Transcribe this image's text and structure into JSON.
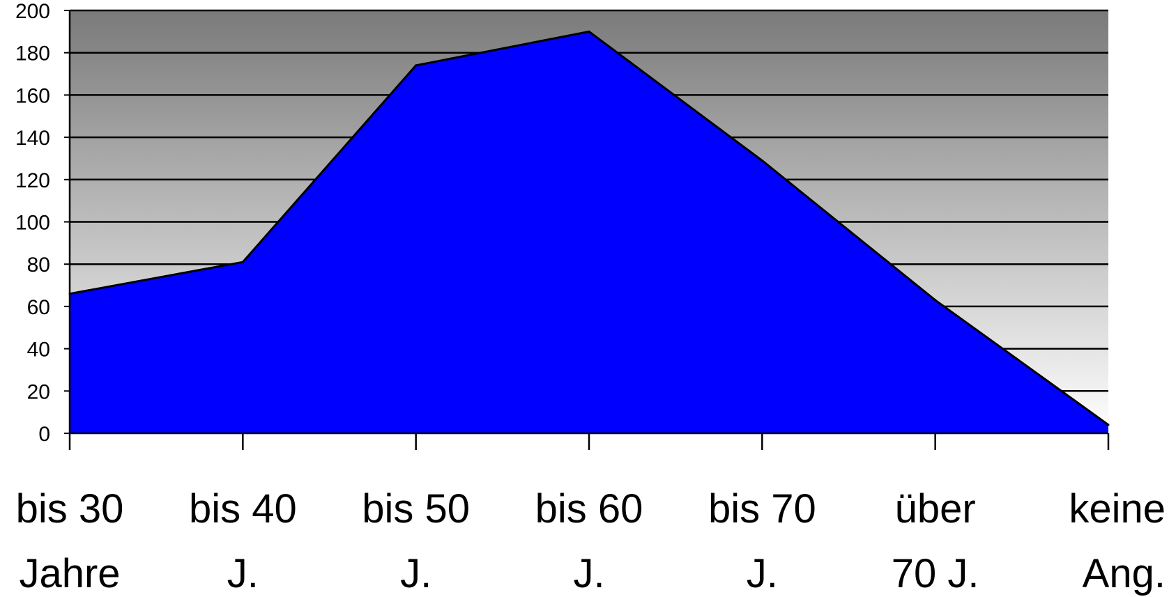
{
  "chart_data": {
    "type": "area",
    "title": "",
    "xlabel": "",
    "ylabel": "",
    "categories": [
      [
        "bis 30",
        "Jahre"
      ],
      [
        "bis 40",
        "J."
      ],
      [
        "bis 50",
        "J."
      ],
      [
        "bis 60",
        "J."
      ],
      [
        "bis 70",
        "J."
      ],
      [
        "über",
        "70 J."
      ],
      [
        "keine",
        "Ang."
      ]
    ],
    "values": [
      66,
      81,
      174,
      190,
      129,
      63,
      4
    ],
    "ylim": [
      0,
      200
    ],
    "yticks": [
      0,
      20,
      40,
      60,
      80,
      100,
      120,
      140,
      160,
      180,
      200
    ],
    "grid": true,
    "legend": "none",
    "colors": {
      "area_fill": "#0000ff",
      "area_stroke": "#000000",
      "background_top": "#7a7a7a",
      "background_bottom": "#ffffff",
      "gridline": "#000000"
    }
  }
}
